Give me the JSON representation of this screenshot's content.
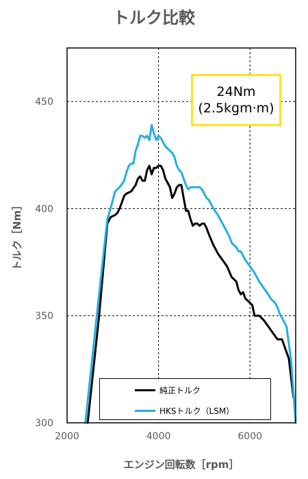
{
  "chart_data": {
    "type": "line",
    "title": "トルク比較",
    "xlabel": "エンジン回転数［rpm］",
    "ylabel": "トルク［Nm］",
    "xlim": [
      2000,
      7000
    ],
    "ylim": [
      300,
      475
    ],
    "x_ticks": [
      2000,
      4000,
      6000
    ],
    "y_ticks": [
      300,
      350,
      400,
      450
    ],
    "grid": true,
    "legend_position": "bottom-center",
    "annotation": [
      "24Nm",
      "(2.5kgm·m)"
    ],
    "annotation_color": "#FFE31A",
    "series": [
      {
        "name": "純正トルク",
        "color": "#000000",
        "x": [
          2450,
          2700,
          2880,
          2950,
          3050,
          3100,
          3150,
          3250,
          3300,
          3400,
          3500,
          3550,
          3600,
          3650,
          3700,
          3750,
          3800,
          3850,
          3900,
          3950,
          4000,
          4050,
          4100,
          4150,
          4200,
          4250,
          4300,
          4350,
          4400,
          4450,
          4500,
          4550,
          4600,
          4650,
          4700,
          4750,
          4800,
          4850,
          4900,
          4950,
          5000,
          5050,
          5100,
          5200,
          5300,
          5400,
          5500,
          5600,
          5700,
          5750,
          5800,
          5850,
          5900,
          5950,
          6000,
          6050,
          6100,
          6200,
          6300,
          6400,
          6500,
          6600,
          6650,
          6700,
          6750,
          6800,
          6850,
          6950
        ],
        "values": [
          300,
          350,
          393,
          396,
          397,
          398,
          400,
          406,
          407,
          408,
          411,
          414,
          415,
          413,
          413,
          418,
          420,
          416,
          419,
          419,
          420,
          420,
          418,
          414,
          412,
          410,
          405,
          407,
          410,
          411,
          411,
          405,
          399,
          399,
          395,
          392,
          393,
          393,
          392,
          393,
          393,
          391,
          388,
          383,
          379,
          376,
          373,
          368,
          366,
          362,
          360,
          361,
          358,
          357,
          356,
          355,
          350,
          350,
          348,
          345,
          342,
          339,
          339,
          339,
          336,
          333,
          330,
          312
        ]
      },
      {
        "name": "HKSトルク（LSM）",
        "color": "#22AEE3",
        "x": [
          2400,
          2650,
          2880,
          2950,
          3050,
          3150,
          3250,
          3300,
          3350,
          3400,
          3450,
          3500,
          3550,
          3600,
          3650,
          3700,
          3750,
          3800,
          3850,
          3900,
          3950,
          4000,
          4050,
          4100,
          4150,
          4200,
          4250,
          4300,
          4350,
          4400,
          4450,
          4500,
          4550,
          4600,
          4650,
          4700,
          4750,
          4800,
          4850,
          4900,
          4950,
          5000,
          5050,
          5100,
          5200,
          5300,
          5400,
          5500,
          5550,
          5600,
          5650,
          5700,
          5750,
          5800,
          5850,
          5900,
          6000,
          6100,
          6200,
          6300,
          6400,
          6450,
          6500,
          6550,
          6600,
          6650,
          6700,
          6750,
          6800,
          6900,
          7000
        ],
        "values": [
          300,
          350,
          395,
          400,
          408,
          410,
          413,
          417,
          420,
          421,
          421,
          427,
          430,
          434,
          434,
          433,
          434,
          432,
          439,
          435,
          432,
          434,
          433,
          431,
          429,
          428,
          427,
          426,
          424,
          420,
          418,
          417,
          414,
          411,
          409,
          410,
          410,
          410,
          410,
          410,
          409,
          407,
          405,
          404,
          400,
          397,
          393,
          389,
          387,
          384,
          383,
          382,
          380,
          380,
          378,
          376,
          373,
          370,
          366,
          363,
          360,
          358,
          357,
          356,
          354,
          351,
          349,
          347,
          345,
          329,
          300
        ]
      }
    ]
  }
}
